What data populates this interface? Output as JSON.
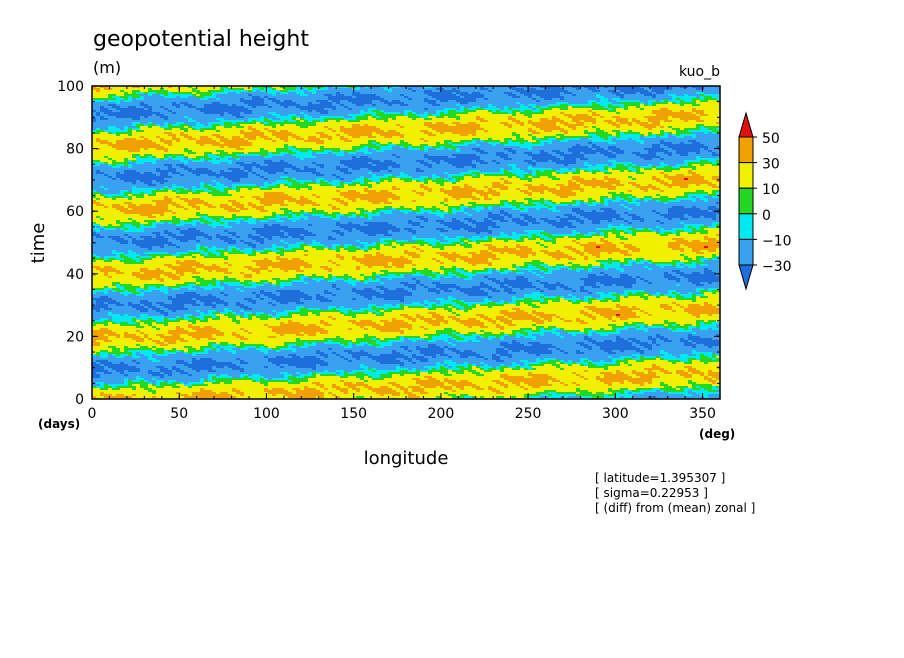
{
  "chart_data": {
    "type": "heatmap",
    "title": "geopotential height",
    "units": "(m)",
    "dataset_label": "kuo_b",
    "xlabel": "longitude",
    "x_unit": "(deg)",
    "ylabel": "time",
    "y_unit": "(days)",
    "xlim": [
      0,
      360
    ],
    "ylim": [
      0,
      100
    ],
    "x_ticks": [
      0,
      50,
      100,
      150,
      200,
      250,
      300,
      350
    ],
    "y_ticks": [
      0,
      20,
      40,
      60,
      80,
      100
    ],
    "colorbar": {
      "levels": [
        -30,
        -10,
        0,
        10,
        30,
        50
      ],
      "tick_labels": [
        "50",
        "30",
        "10",
        "0",
        "−10",
        "−30"
      ],
      "colors": [
        "#1e6fdc",
        "#3aa0f0",
        "#00e8f0",
        "#22d822",
        "#f0f000",
        "#f0a000",
        "#e01010"
      ],
      "extend": "both"
    },
    "band_pattern": {
      "description_of_field": "positive anomaly bands tilted eastward in time",
      "band_slope_days_per_deg": 0.0278,
      "band_period_days": 20.5,
      "band_intercepts_days": [
        -18,
        3,
        23.5,
        44,
        64.5,
        85,
        105.5
      ]
    }
  },
  "annotations": [
    "[ latitude=1.395307 ]",
    "[ sigma=0.22953 ]",
    "[ (diff) from (mean) zonal ]"
  ]
}
